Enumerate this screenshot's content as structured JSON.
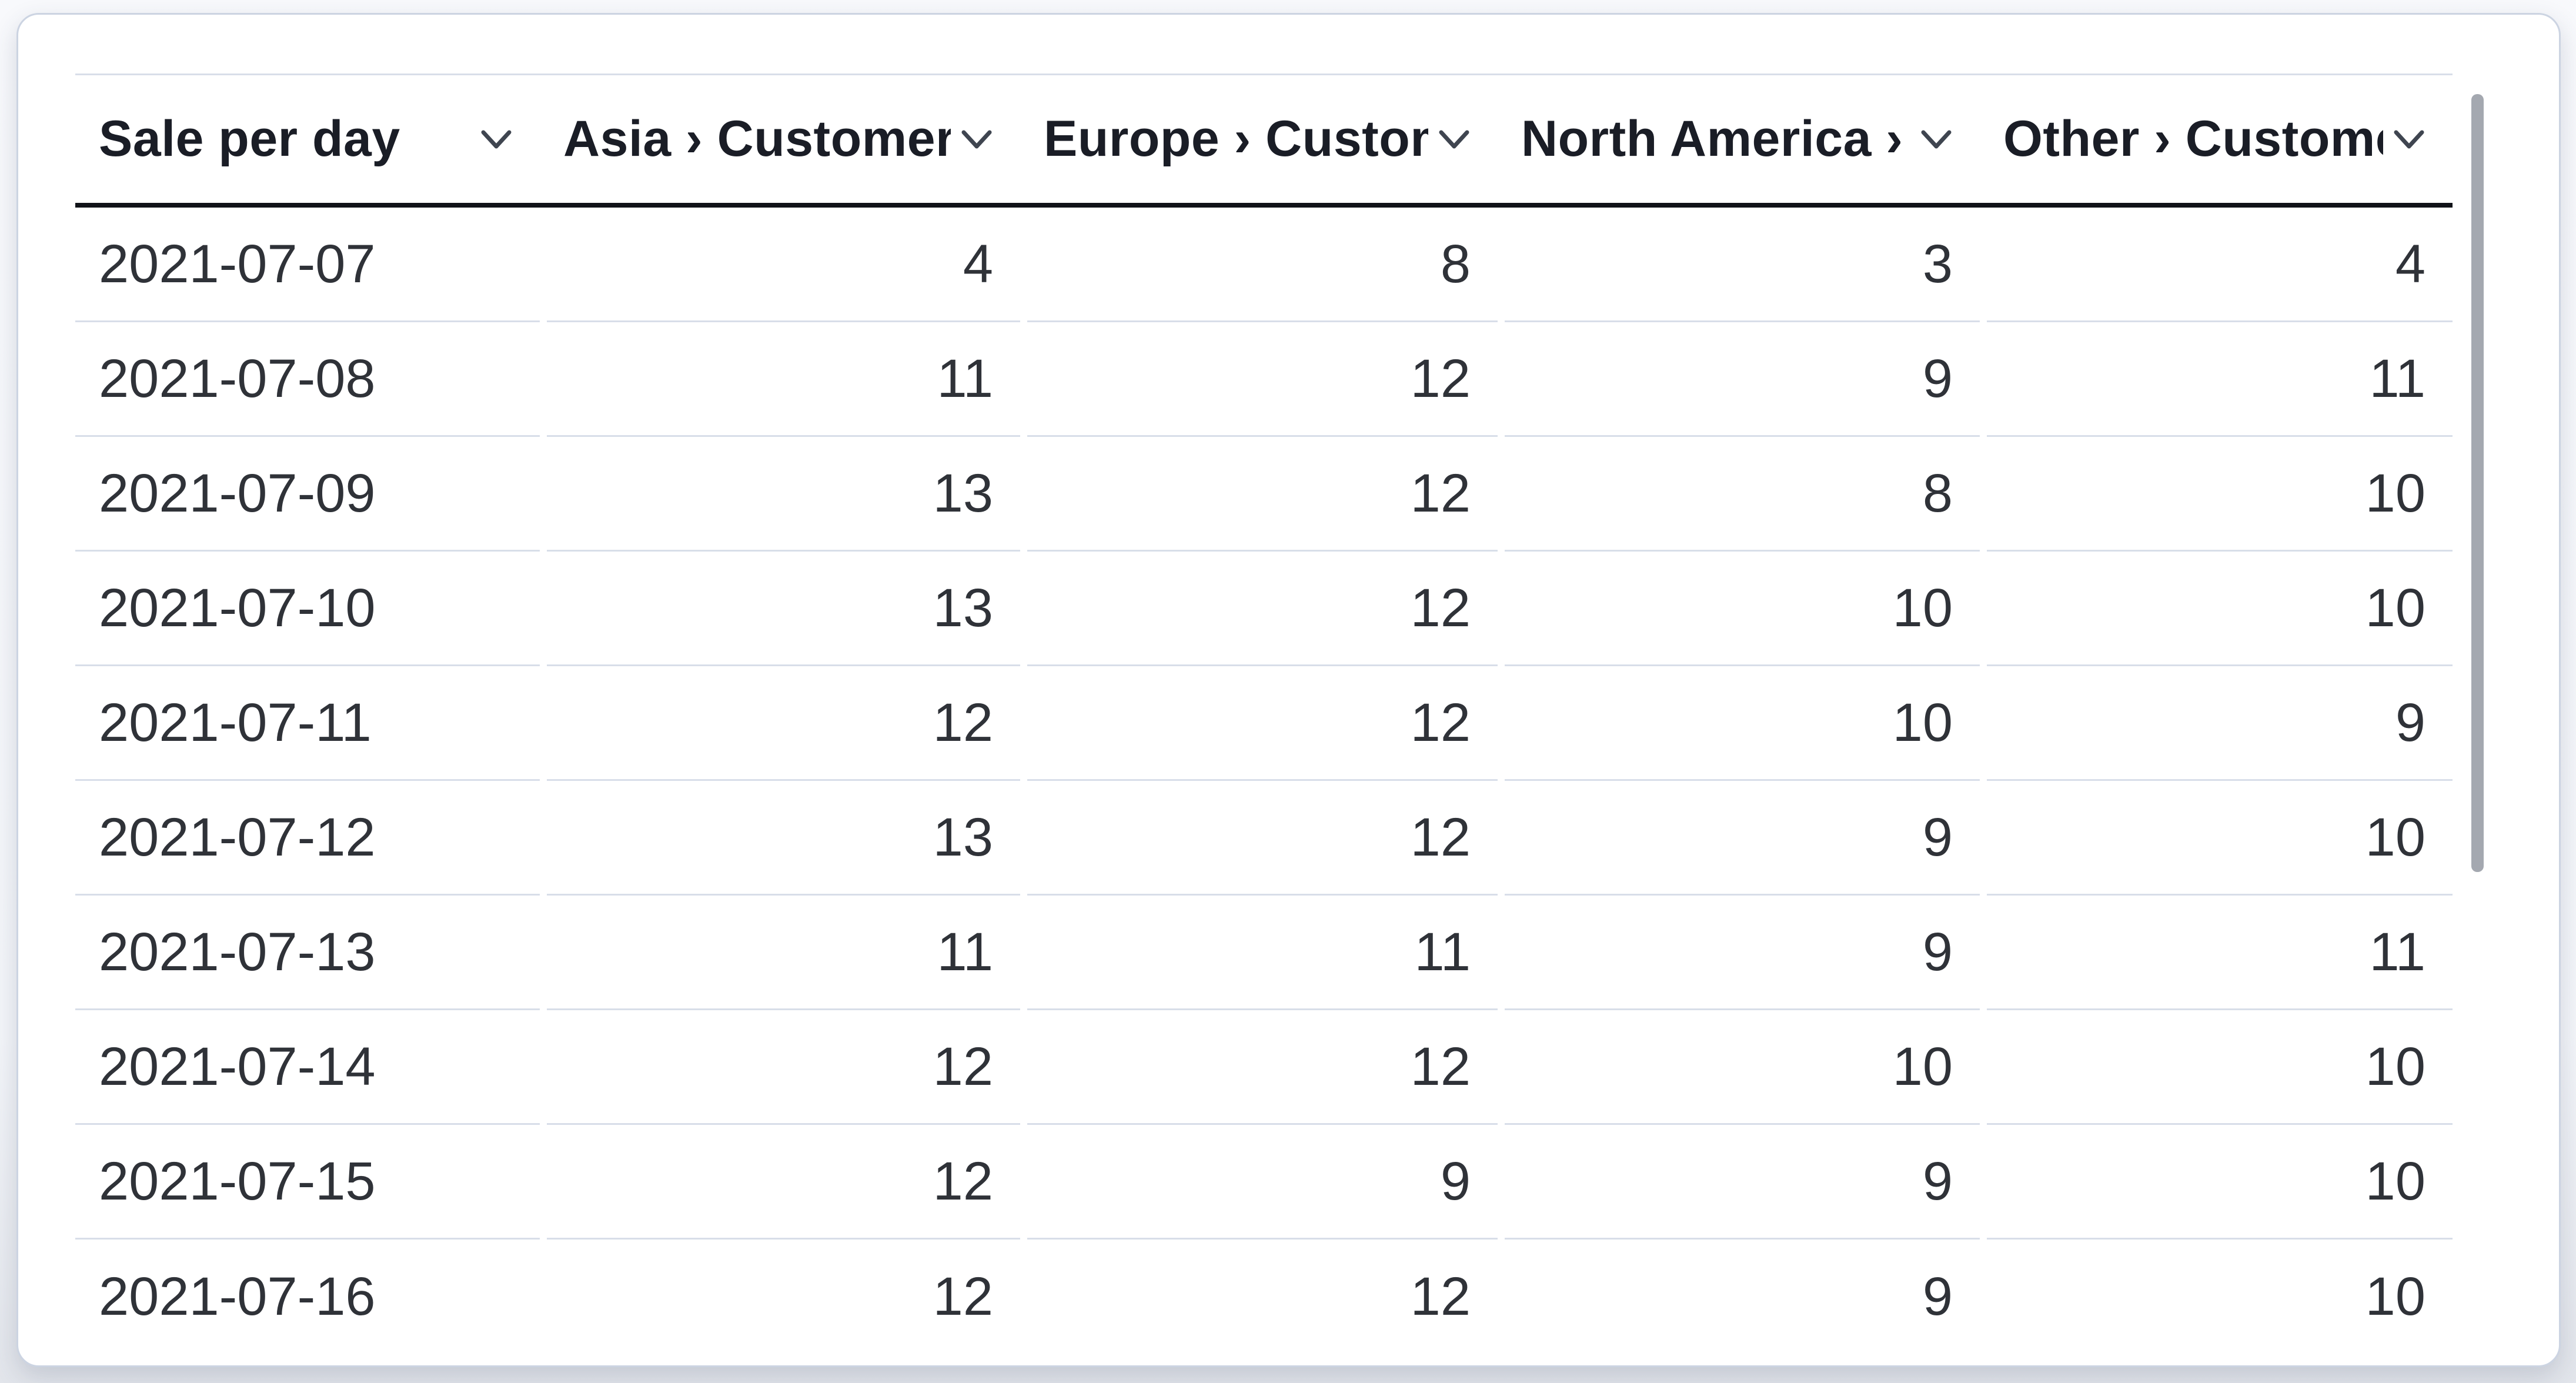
{
  "table": {
    "columns": [
      {
        "label": "Sale per day",
        "align": "left"
      },
      {
        "label": "Asia › Customers",
        "align": "right"
      },
      {
        "label": "Europe › Customers",
        "align": "right"
      },
      {
        "label": "North America › Customers",
        "align": "right"
      },
      {
        "label": "Other › Customers",
        "align": "right"
      }
    ],
    "rows": [
      [
        "2021-07-07",
        "4",
        "8",
        "3",
        "4"
      ],
      [
        "2021-07-08",
        "11",
        "12",
        "9",
        "11"
      ],
      [
        "2021-07-09",
        "13",
        "12",
        "8",
        "10"
      ],
      [
        "2021-07-10",
        "13",
        "12",
        "10",
        "10"
      ],
      [
        "2021-07-11",
        "12",
        "12",
        "10",
        "9"
      ],
      [
        "2021-07-12",
        "13",
        "12",
        "9",
        "10"
      ],
      [
        "2021-07-13",
        "11",
        "11",
        "9",
        "11"
      ],
      [
        "2021-07-14",
        "12",
        "12",
        "10",
        "10"
      ],
      [
        "2021-07-15",
        "12",
        "9",
        "9",
        "10"
      ],
      [
        "2021-07-16",
        "12",
        "12",
        "9",
        "10"
      ]
    ]
  },
  "icons": {
    "sort_chevron": "chevron-down"
  },
  "colors": {
    "header_text": "#1a1d26",
    "body_text": "#2f3238",
    "header_underline": "#101218",
    "row_separator": "#d8dee9",
    "card_border": "#ccd4e2",
    "scrollbar_thumb": "#a4a8b0",
    "page_background": "#f3f5f9",
    "card_background": "#ffffff"
  }
}
